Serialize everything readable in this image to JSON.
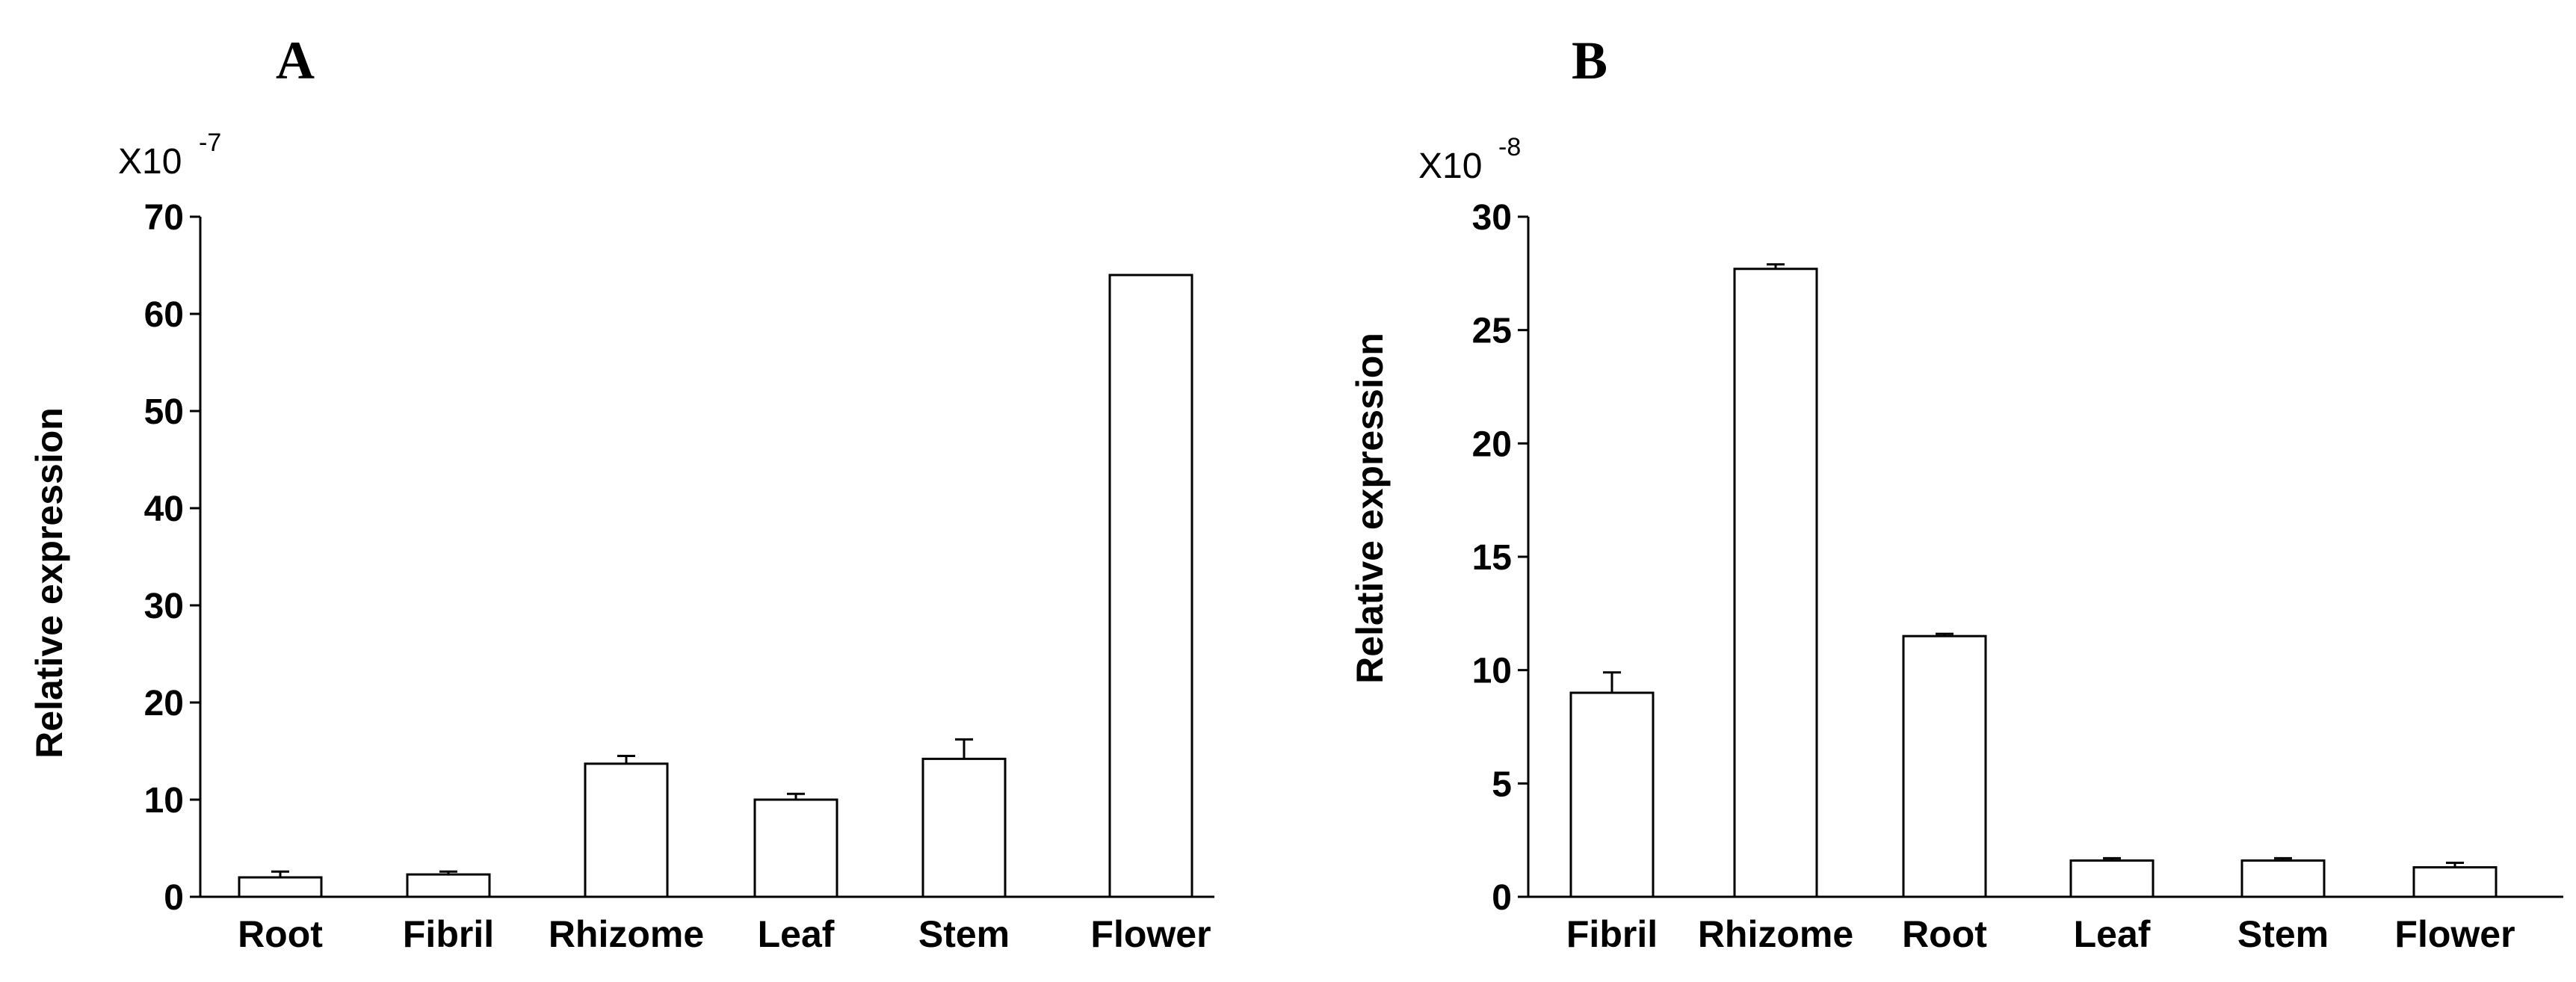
{
  "chart_data": [
    {
      "type": "bar",
      "panel": "A",
      "multiplier": "X10",
      "multiplier_exponent": "-7",
      "ylabel": "Relative expression",
      "xlabel": "",
      "ylim": [
        0,
        70
      ],
      "yticks": [
        0,
        10,
        20,
        30,
        40,
        50,
        60,
        70
      ],
      "categories": [
        "Root",
        "Fibril",
        "Rhizome",
        "Leaf",
        "Stem",
        "Flower"
      ],
      "values": [
        2.0,
        2.3,
        13.7,
        10.0,
        14.2,
        64.0
      ],
      "errors": [
        0.6,
        0.3,
        0.8,
        0.6,
        2.0,
        0
      ],
      "grid": false,
      "bar_color": "#ffffff",
      "line_color": "#000000"
    },
    {
      "type": "bar",
      "panel": "B",
      "multiplier": "X10",
      "multiplier_exponent": "-8",
      "ylabel": "Relative expression",
      "xlabel": "",
      "ylim": [
        0,
        30
      ],
      "yticks": [
        0,
        5,
        10,
        15,
        20,
        25,
        30
      ],
      "categories": [
        "Fibril",
        "Rhizome",
        "Root",
        "Leaf",
        "Stem",
        "Flower"
      ],
      "values": [
        9.0,
        27.7,
        11.5,
        1.6,
        1.6,
        1.3
      ],
      "errors": [
        0.9,
        0.2,
        0.1,
        0.1,
        0.1,
        0.2
      ],
      "grid": false,
      "bar_color": "#ffffff",
      "line_color": "#000000"
    }
  ]
}
